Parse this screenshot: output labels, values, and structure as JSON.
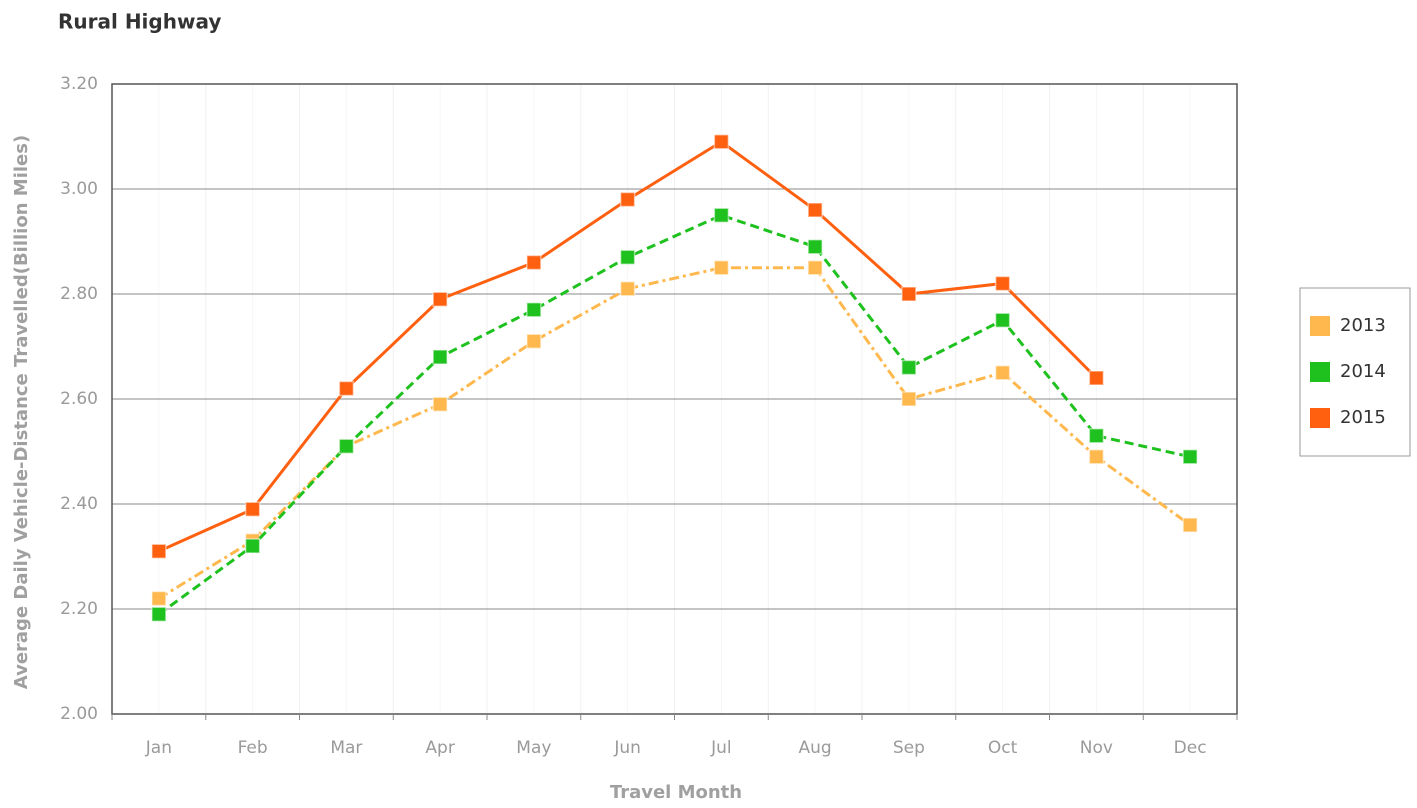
{
  "chart_data": {
    "type": "line",
    "title": "Rural Highway",
    "x_label": "Travel Month",
    "y_label": "Average Daily Vehicle-Distance Travelled(Billion Miles)",
    "categories": [
      "Jan",
      "Feb",
      "Mar",
      "Apr",
      "May",
      "Jun",
      "Jul",
      "Aug",
      "Sep",
      "Oct",
      "Nov",
      "Dec"
    ],
    "series": [
      {
        "name": "2013",
        "color": "#ffb84d",
        "linestyle": "dashdot",
        "values": [
          2.22,
          2.33,
          2.51,
          2.59,
          2.71,
          2.81,
          2.85,
          2.85,
          2.6,
          2.65,
          2.49,
          2.36
        ]
      },
      {
        "name": "2014",
        "color": "#1ec11e",
        "linestyle": "dashed",
        "values": [
          2.19,
          2.32,
          2.51,
          2.68,
          2.77,
          2.87,
          2.95,
          2.89,
          2.66,
          2.75,
          2.53,
          2.49
        ]
      },
      {
        "name": "2015",
        "color": "#ff6010",
        "linestyle": "solid",
        "values": [
          2.31,
          2.39,
          2.62,
          2.79,
          2.86,
          2.98,
          3.09,
          2.96,
          2.8,
          2.82,
          2.64,
          null
        ]
      }
    ],
    "ylim": [
      2.0,
      3.2
    ],
    "yticks": [
      {
        "value": 2.0,
        "label": "2.00"
      },
      {
        "value": 2.2,
        "label": "2.20"
      },
      {
        "value": 2.4,
        "label": "2.40"
      },
      {
        "value": 2.6,
        "label": "2.60"
      },
      {
        "value": 2.8,
        "label": "2.80"
      },
      {
        "value": 3.0,
        "label": "3.00"
      },
      {
        "value": 3.2,
        "label": "3.20"
      }
    ],
    "grid": true,
    "legend": "right"
  }
}
